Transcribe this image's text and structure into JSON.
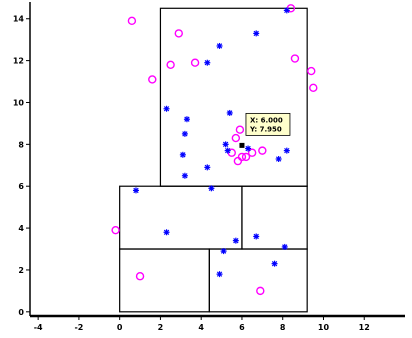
{
  "chart_data": {
    "type": "scatter",
    "title": "",
    "xlabel": "",
    "ylabel": "",
    "xlim": [
      -4.4,
      14.0
    ],
    "ylim": [
      -0.2,
      14.8
    ],
    "xticks": [
      -4,
      -2,
      0,
      2,
      4,
      6,
      8,
      10,
      12
    ],
    "yticks": [
      0,
      2,
      4,
      6,
      8,
      10,
      12,
      14
    ],
    "grid": false,
    "colors": {
      "circle": "#ff00ff",
      "star": "#0000ff",
      "box": "#000000",
      "tooltip_bg": "#ffffcc"
    },
    "series": [
      {
        "marker": "circle",
        "points": [
          [
            0.6,
            13.9
          ],
          [
            2.9,
            13.3
          ],
          [
            2.5,
            11.8
          ],
          [
            1.6,
            11.1
          ],
          [
            3.7,
            11.9
          ],
          [
            8.4,
            14.5
          ],
          [
            8.6,
            12.1
          ],
          [
            9.4,
            11.5
          ],
          [
            9.5,
            10.7
          ],
          [
            5.9,
            8.7
          ],
          [
            5.7,
            8.3
          ],
          [
            5.5,
            7.6
          ],
          [
            6.2,
            7.4
          ],
          [
            6.5,
            7.6
          ],
          [
            7.0,
            7.7
          ],
          [
            6.0,
            7.4
          ],
          [
            5.8,
            7.2
          ],
          [
            -0.2,
            3.9
          ],
          [
            1.0,
            1.7
          ],
          [
            6.9,
            1.0
          ]
        ]
      },
      {
        "marker": "star",
        "points": [
          [
            4.9,
            12.7
          ],
          [
            6.7,
            13.3
          ],
          [
            8.2,
            14.4
          ],
          [
            4.3,
            11.9
          ],
          [
            2.3,
            9.7
          ],
          [
            3.3,
            9.2
          ],
          [
            3.2,
            8.5
          ],
          [
            5.4,
            9.5
          ],
          [
            5.2,
            8.0
          ],
          [
            3.1,
            7.5
          ],
          [
            5.3,
            7.7
          ],
          [
            4.3,
            6.9
          ],
          [
            7.8,
            7.3
          ],
          [
            8.2,
            7.7
          ],
          [
            6.3,
            7.8
          ],
          [
            3.2,
            6.5
          ],
          [
            0.8,
            5.8
          ],
          [
            4.5,
            5.9
          ],
          [
            2.3,
            3.8
          ],
          [
            5.7,
            3.4
          ],
          [
            6.7,
            3.6
          ],
          [
            5.1,
            2.9
          ],
          [
            8.1,
            3.1
          ],
          [
            7.6,
            2.3
          ],
          [
            4.9,
            1.8
          ]
        ]
      }
    ],
    "boxes": [
      {
        "x": [
          2.0,
          9.2
        ],
        "y": [
          6.0,
          14.5
        ]
      },
      {
        "x": [
          0.0,
          6.0
        ],
        "y": [
          3.0,
          6.0
        ]
      },
      {
        "x": [
          6.0,
          9.2
        ],
        "y": [
          3.0,
          6.0
        ]
      },
      {
        "x": [
          0.0,
          4.4
        ],
        "y": [
          0.0,
          3.0
        ]
      },
      {
        "x": [
          4.4,
          9.2
        ],
        "y": [
          0.0,
          3.0
        ]
      }
    ],
    "tooltip": {
      "point": [
        6.0,
        7.95
      ],
      "lines": [
        "X: 6.000",
        "Y: 7.950"
      ]
    }
  }
}
